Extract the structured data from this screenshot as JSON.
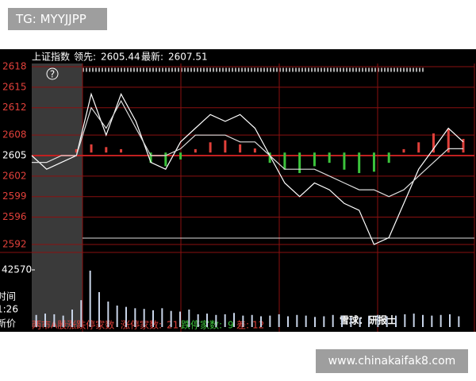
{
  "tag": "TG: MYYJJPP",
  "site": "www.chinakaifak8.com",
  "watermark": "雪球：研报士",
  "side_labels": [
    "时间",
    "1:26",
    "新价"
  ],
  "chart_data": {
    "type": "line",
    "title": "上证指数",
    "lead_label": "领先:",
    "lead": 2605.44,
    "latest_label": "最新:",
    "latest": 2607.51,
    "help": "?",
    "ylim": [
      2592,
      2618
    ],
    "yticks": [
      2618,
      2615,
      2612,
      2608,
      2605,
      2602,
      2599,
      2596,
      2592
    ],
    "grid": true,
    "series": [
      {
        "color": "#ffffff",
        "values": [
          2605,
          2603,
          2604,
          2605,
          2614,
          2608,
          2614,
          2610,
          2604,
          2603,
          2607,
          2609,
          2611,
          2610,
          2611,
          2609,
          2605,
          2601,
          2599,
          2601,
          2600,
          2598,
          2597,
          2592,
          2593,
          2598,
          2603,
          2606,
          2609,
          2607
        ]
      },
      {
        "color": "#dddddd",
        "values": [
          2604,
          2604,
          2605,
          2605,
          2612,
          2609,
          2613,
          2609,
          2605,
          2605,
          2606,
          2608,
          2608,
          2608,
          2607,
          2607,
          2605,
          2603,
          2603,
          2603,
          2602,
          2601,
          2600,
          2600,
          2599,
          2600,
          2602,
          2604,
          2606,
          2606
        ]
      }
    ],
    "breadth": [
      0,
      0,
      0,
      0.5,
      1.2,
      0.8,
      0.5,
      0,
      -1.5,
      -2,
      -1,
      0.5,
      1.5,
      1.8,
      1.2,
      0.6,
      -1.5,
      -2.5,
      -3,
      -2,
      -1.5,
      -2.5,
      -3,
      -2.8,
      -1.5,
      0.5,
      1.5,
      2.8,
      3.5,
      2
    ],
    "up_color": "#e0403a",
    "down_color": "#3cc43c",
    "volume": [
      9000,
      10000,
      9500,
      8500,
      13000,
      20000,
      42000,
      26000,
      19000,
      16000,
      15000,
      14000,
      13500,
      12500,
      14000,
      12000,
      11500,
      13000,
      9500,
      10000,
      9000,
      9500,
      10500,
      8500,
      9000,
      8000,
      8500,
      9500,
      8000,
      9000,
      8500,
      7500,
      8000,
      9000,
      8500,
      7500,
      7000,
      8000,
      9000,
      8000,
      8500,
      9500,
      10000,
      9000,
      8500,
      9000,
      9500,
      8000
    ],
    "volume_color": "#c8d4e8",
    "vlim": [
      0,
      42570
    ],
    "vticks": [
      42570
    ],
    "footer": {
      "title": "两市A股涨跌停家数",
      "up_label": "涨停家数:",
      "up": 21,
      "down_label": "跌停家数:",
      "down": 9,
      "diff_label": "差:",
      "diff": 12
    }
  }
}
